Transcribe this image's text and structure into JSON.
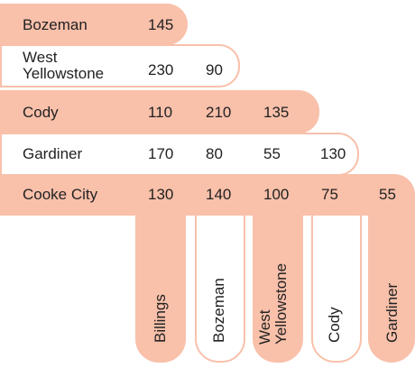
{
  "rows": [
    {
      "label_lines": [
        "Bozeman"
      ],
      "values": [
        "145"
      ]
    },
    {
      "label_lines": [
        "West",
        "Yellowstone"
      ],
      "values": [
        "230",
        "90"
      ]
    },
    {
      "label_lines": [
        "Cody"
      ],
      "values": [
        "110",
        "210",
        "135"
      ]
    },
    {
      "label_lines": [
        "Gardiner"
      ],
      "values": [
        "170",
        "80",
        "55",
        "130"
      ]
    },
    {
      "label_lines": [
        "Cooke City"
      ],
      "values": [
        "130",
        "140",
        "100",
        "75",
        "55"
      ]
    }
  ],
  "columns": [
    {
      "label_lines": [
        "Billings"
      ]
    },
    {
      "label_lines": [
        "Bozeman"
      ]
    },
    {
      "label_lines": [
        "West",
        "Yellowstone"
      ]
    },
    {
      "label_lines": [
        "Cody"
      ]
    },
    {
      "label_lines": [
        "Gardiner"
      ]
    }
  ],
  "colors": {
    "accent": "#f9c0aa",
    "text": "#222222",
    "background": "#ffffff"
  }
}
